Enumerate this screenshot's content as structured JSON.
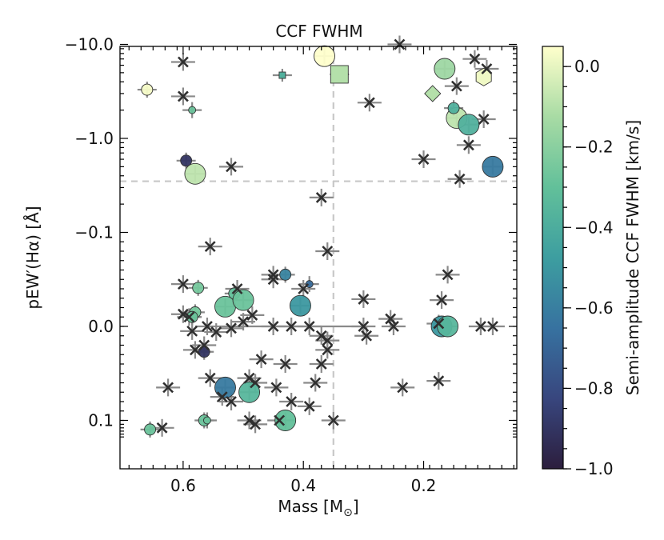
{
  "chart_data": {
    "type": "scatter",
    "title": "CCF FWHM",
    "xlabel": "Mass [M",
    "xlabel_sub": "⊙",
    "xlabel_end": "]",
    "ylabel": "pEW′(Hα) [Å]",
    "xlim": [
      0.705,
      0.045
    ],
    "x_inverted": true,
    "y_scale": "symlog",
    "xticks": [
      0.6,
      0.4,
      0.2
    ],
    "xtick_labels": [
      "0.6",
      "0.4",
      "0.2"
    ],
    "yticks": [
      -10.0,
      -1.0,
      -0.1,
      0.0,
      0.1
    ],
    "ytick_labels": [
      "−10.0",
      "−1.0",
      "−0.1",
      "0.0",
      "0.1"
    ],
    "ref_lines": {
      "x": 0.35,
      "y": -0.35,
      "style": "dashed",
      "color": "#c8c8c8"
    },
    "colorbar": {
      "label": "Semi-amplitude CCF FWHM [km/s]",
      "range": [
        -1.0,
        0.05
      ],
      "ticks": [
        0.0,
        -0.2,
        -0.4,
        -0.6,
        -0.8,
        -1.0
      ],
      "tick_labels": [
        "0.0",
        "−0.2",
        "−0.4",
        "−0.6",
        "−0.8",
        "−1.0"
      ],
      "colormap": "crest",
      "stops": [
        "#2c1e3d",
        "#38467e",
        "#3772a0",
        "#3d9ea0",
        "#62c09a",
        "#a8dba4",
        "#ffffcc"
      ]
    },
    "crosses": [
      [
        0.6,
        -6.5
      ],
      [
        0.6,
        -2.8
      ],
      [
        0.52,
        -0.5
      ],
      [
        0.24,
        -10.0
      ],
      [
        0.29,
        -2.4
      ],
      [
        0.115,
        -7.0
      ],
      [
        0.095,
        -5.5
      ],
      [
        0.145,
        -3.6
      ],
      [
        0.1,
        -1.6
      ],
      [
        0.125,
        -0.85
      ],
      [
        0.2,
        -0.6
      ],
      [
        0.14,
        -0.37
      ],
      [
        0.37,
        -0.235
      ],
      [
        0.555,
        -0.085
      ],
      [
        0.36,
        -0.08
      ],
      [
        0.6,
        -0.045
      ],
      [
        0.51,
        -0.04
      ],
      [
        0.45,
        -0.055
      ],
      [
        0.45,
        -0.05
      ],
      [
        0.4,
        -0.04
      ],
      [
        0.3,
        -0.029
      ],
      [
        0.16,
        -0.055
      ],
      [
        0.17,
        -0.028
      ],
      [
        0.6,
        -0.013
      ],
      [
        0.59,
        -0.01
      ],
      [
        0.56,
        0.0
      ],
      [
        0.585,
        0.005
      ],
      [
        0.545,
        0.006
      ],
      [
        0.52,
        0.002
      ],
      [
        0.5,
        -0.005
      ],
      [
        0.485,
        -0.012
      ],
      [
        0.45,
        0.0
      ],
      [
        0.42,
        0.0
      ],
      [
        0.39,
        0.0
      ],
      [
        0.37,
        0.01
      ],
      [
        0.36,
        0.015
      ],
      [
        0.36,
        0.025
      ],
      [
        0.3,
        0.0
      ],
      [
        0.295,
        0.01
      ],
      [
        0.255,
        -0.008
      ],
      [
        0.25,
        0.0
      ],
      [
        0.175,
        -0.003
      ],
      [
        0.105,
        0.0
      ],
      [
        0.085,
        0.0
      ],
      [
        0.565,
        0.02
      ],
      [
        0.58,
        0.025
      ],
      [
        0.43,
        0.04
      ],
      [
        0.47,
        0.035
      ],
      [
        0.37,
        0.04
      ],
      [
        0.555,
        0.055
      ],
      [
        0.49,
        0.055
      ],
      [
        0.48,
        0.06
      ],
      [
        0.445,
        0.065
      ],
      [
        0.38,
        0.06
      ],
      [
        0.625,
        0.065
      ],
      [
        0.535,
        0.075
      ],
      [
        0.52,
        0.08
      ],
      [
        0.42,
        0.08
      ],
      [
        0.39,
        0.085
      ],
      [
        0.235,
        0.065
      ],
      [
        0.175,
        0.058
      ],
      [
        0.49,
        0.1
      ],
      [
        0.48,
        0.11
      ],
      [
        0.44,
        0.1
      ],
      [
        0.35,
        0.1
      ],
      [
        0.635,
        0.12
      ]
    ],
    "circles": [
      [
        0.66,
        -3.3,
        0.03,
        "s"
      ],
      [
        0.365,
        -7.5,
        0.05,
        "l"
      ],
      [
        0.585,
        -2.0,
        -0.28,
        "xs"
      ],
      [
        0.595,
        -0.58,
        -0.9,
        "s"
      ],
      [
        0.58,
        -0.42,
        -0.08,
        "l"
      ],
      [
        0.165,
        -5.5,
        -0.15,
        "l"
      ],
      [
        0.145,
        -1.65,
        -0.08,
        "l"
      ],
      [
        0.125,
        -1.4,
        -0.38,
        "l"
      ],
      [
        0.15,
        -2.1,
        -0.38,
        "s"
      ],
      [
        0.085,
        -0.5,
        -0.62,
        "l"
      ],
      [
        0.39,
        -0.045,
        -0.68,
        "xs"
      ],
      [
        0.43,
        -0.055,
        -0.58,
        "s"
      ],
      [
        0.575,
        -0.041,
        -0.25,
        "s"
      ],
      [
        0.515,
        -0.035,
        -0.3,
        "s"
      ],
      [
        0.53,
        -0.021,
        -0.28,
        "l"
      ],
      [
        0.5,
        -0.028,
        -0.28,
        "l"
      ],
      [
        0.405,
        -0.022,
        -0.5,
        "l"
      ],
      [
        0.58,
        -0.015,
        -0.25,
        "s"
      ],
      [
        0.585,
        -0.01,
        -0.28,
        "s"
      ],
      [
        0.17,
        0.0,
        -0.5,
        "l"
      ],
      [
        0.16,
        0.0,
        -0.35,
        "l"
      ],
      [
        0.565,
        0.027,
        -0.9,
        "s"
      ],
      [
        0.53,
        0.065,
        -0.62,
        "l"
      ],
      [
        0.49,
        0.07,
        -0.35,
        "l"
      ],
      [
        0.43,
        0.1,
        -0.3,
        "l"
      ],
      [
        0.565,
        0.1,
        -0.28,
        "s"
      ],
      [
        0.655,
        0.125,
        -0.28,
        "s"
      ],
      [
        0.56,
        0.1,
        -0.28,
        "xs"
      ]
    ],
    "squares": [
      [
        0.435,
        -4.7,
        -0.38,
        "s"
      ],
      [
        0.34,
        -4.8,
        -0.1,
        "l"
      ]
    ],
    "diamonds": [
      [
        0.185,
        -3.0,
        -0.1
      ]
    ],
    "hexagons": [
      [
        0.1,
        -4.5,
        0.02
      ]
    ]
  }
}
